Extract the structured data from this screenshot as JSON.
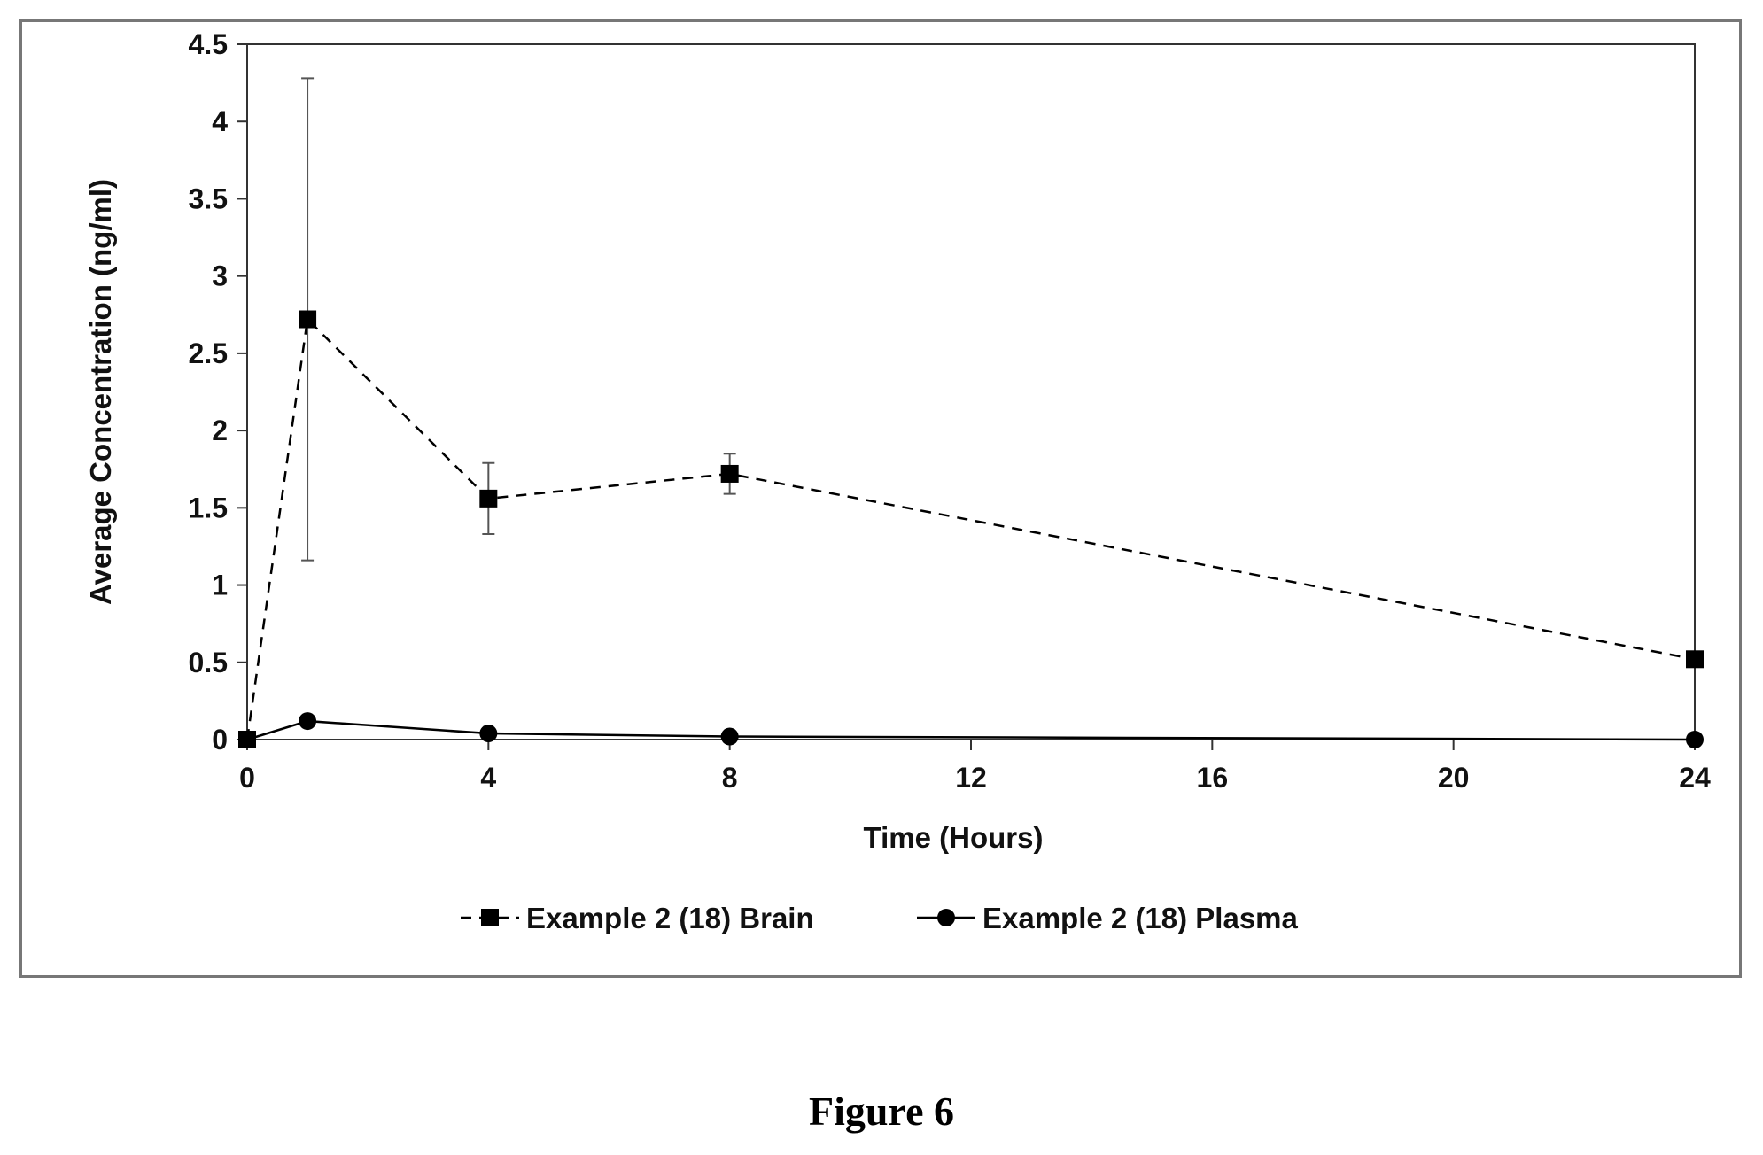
{
  "figure_caption": "Figure 6",
  "chart_data": {
    "type": "line",
    "title": "",
    "xlabel": "Time (Hours)",
    "ylabel": "Average Concentration (ng/ml)",
    "xlim": [
      0,
      24
    ],
    "ylim": [
      0,
      4.5
    ],
    "x_ticks": [
      0,
      4,
      8,
      12,
      16,
      20,
      24
    ],
    "y_ticks": [
      0,
      0.5,
      1,
      1.5,
      2,
      2.5,
      3,
      3.5,
      4,
      4.5
    ],
    "y_tick_labels": [
      "0",
      "0.5",
      "1",
      "1.5",
      "2",
      "2.5",
      "3",
      "3.5",
      "4",
      "4.5"
    ],
    "grid": false,
    "legend_position": "bottom",
    "series": [
      {
        "name": "Example 2 (18) Brain",
        "marker": "square",
        "line_style": "dashed",
        "color": "#000000",
        "x": [
          0,
          1,
          4,
          8,
          24
        ],
        "y": [
          0,
          2.72,
          1.56,
          1.72,
          0.52
        ],
        "error": [
          null,
          1.56,
          0.23,
          0.13,
          null
        ]
      },
      {
        "name": "Example 2 (18) Plasma",
        "marker": "circle",
        "line_style": "solid",
        "color": "#000000",
        "x": [
          0,
          1,
          4,
          8,
          24
        ],
        "y": [
          0,
          0.12,
          0.04,
          0.02,
          0
        ],
        "error": [
          null,
          null,
          null,
          null,
          null
        ]
      }
    ]
  }
}
